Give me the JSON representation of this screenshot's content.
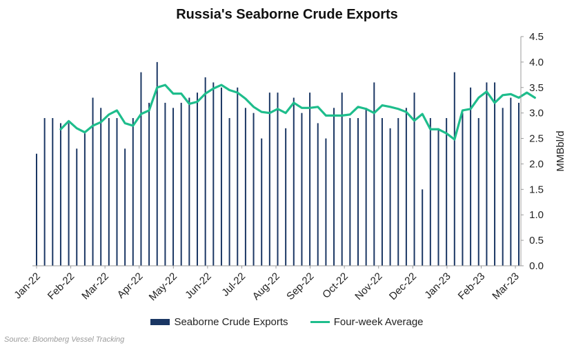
{
  "chart_data": {
    "type": "bar",
    "title": "Russia's Seaborne Crude Exports",
    "xlabel": "",
    "ylabel": "MMBbl/d",
    "ylim": [
      0,
      4.5
    ],
    "yticks": [
      "0.0",
      "0.5",
      "1.0",
      "1.5",
      "2.0",
      "2.5",
      "3.0",
      "3.5",
      "4.0",
      "4.5"
    ],
    "y_axis_position": "right",
    "grid": false,
    "legend_position": "bottom",
    "x_tick_labels": [
      "Jan-22",
      "Feb-22",
      "Mar-22",
      "Apr-22",
      "May-22",
      "Jun-22",
      "Jul-22",
      "Aug-22",
      "Sep-22",
      "Oct-22",
      "Nov-22",
      "Dec-22",
      "Jan-23",
      "Feb-23",
      "Mar-23"
    ],
    "series": [
      {
        "name": "Seaborne Crude Exports",
        "type": "bar",
        "color": "#1a3663",
        "values": [
          2.2,
          2.9,
          2.9,
          2.8,
          2.8,
          2.3,
          2.6,
          3.3,
          3.1,
          2.9,
          2.9,
          2.3,
          2.9,
          3.8,
          3.2,
          4.0,
          3.2,
          3.1,
          3.2,
          3.3,
          3.4,
          3.7,
          3.6,
          3.5,
          2.9,
          3.5,
          3.1,
          3.0,
          2.5,
          3.4,
          3.4,
          2.7,
          3.3,
          3.0,
          3.4,
          2.8,
          2.5,
          3.1,
          3.4,
          2.9,
          2.9,
          3.1,
          3.6,
          2.9,
          2.7,
          2.9,
          3.1,
          3.4,
          1.5,
          2.9,
          2.7,
          2.9,
          3.8,
          3.0,
          3.5,
          2.9,
          3.6,
          3.6,
          3.1,
          3.3,
          3.2
        ]
      },
      {
        "name": "Four-week Average",
        "type": "line",
        "color": "#1ebd8c",
        "start_week": 3,
        "values": [
          2.68,
          2.84,
          2.7,
          2.62,
          2.75,
          2.82,
          2.97,
          3.05,
          2.8,
          2.75,
          2.98,
          3.05,
          3.5,
          3.55,
          3.38,
          3.38,
          3.18,
          3.22,
          3.38,
          3.48,
          3.55,
          3.45,
          3.4,
          3.28,
          3.12,
          3.02,
          3.0,
          3.08,
          3.0,
          3.2,
          3.1,
          3.1,
          3.12,
          2.95,
          2.95,
          2.95,
          2.97,
          3.12,
          3.08,
          3.0,
          3.15,
          3.12,
          3.08,
          3.02,
          2.85,
          2.98,
          2.68,
          2.68,
          2.6,
          2.48,
          3.05,
          3.08,
          3.3,
          3.42,
          3.2,
          3.35,
          3.37,
          3.3,
          3.4,
          3.3
        ]
      }
    ]
  },
  "source_note": "Source: Bloomberg Vessel Tracking"
}
